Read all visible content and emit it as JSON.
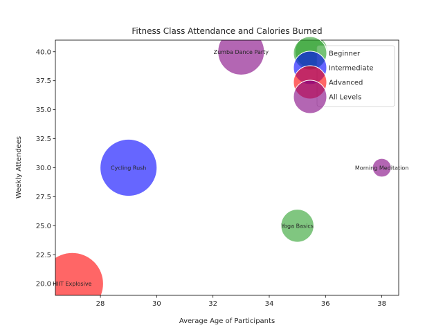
{
  "chart_data": {
    "type": "scatter",
    "title": "Fitness Class Attendance and Calories Burned",
    "xlabel": "Average Age of Participants",
    "ylabel": "Weekly Attendees",
    "xlim": [
      26.4,
      38.6
    ],
    "ylim": [
      19.0,
      41.0
    ],
    "x_ticks": [
      28,
      30,
      32,
      34,
      36,
      38
    ],
    "y_ticks": [
      20.0,
      22.5,
      25.0,
      27.5,
      30.0,
      32.5,
      35.0,
      37.5,
      40.0
    ],
    "grid": false,
    "legend_position": "top-right",
    "series": [
      {
        "name": "Beginner",
        "color": "#2ca02c"
      },
      {
        "name": "Intermediate",
        "color": "#0000ff"
      },
      {
        "name": "Advanced",
        "color": "#ff0000"
      },
      {
        "name": "All Levels",
        "color": "#800080"
      }
    ],
    "points": [
      {
        "label": "Zumba Dance Party",
        "x": 33,
        "y": 40,
        "size": 500,
        "level": "All Levels"
      },
      {
        "label": "Cycling Rush",
        "x": 29,
        "y": 30,
        "size": 750,
        "level": "Intermediate"
      },
      {
        "label": "Morning Meditation",
        "x": 38,
        "y": 30,
        "size": 80,
        "level": "All Levels"
      },
      {
        "label": "Yoga Basics",
        "x": 35,
        "y": 25,
        "size": 250,
        "level": "Beginner"
      },
      {
        "label": "HIIT Explosive",
        "x": 27,
        "y": 20,
        "size": 900,
        "level": "Advanced"
      },
      {
        "label": "",
        "x": 35.5,
        "y": 40,
        "size": 250,
        "level": "Beginner"
      }
    ]
  }
}
